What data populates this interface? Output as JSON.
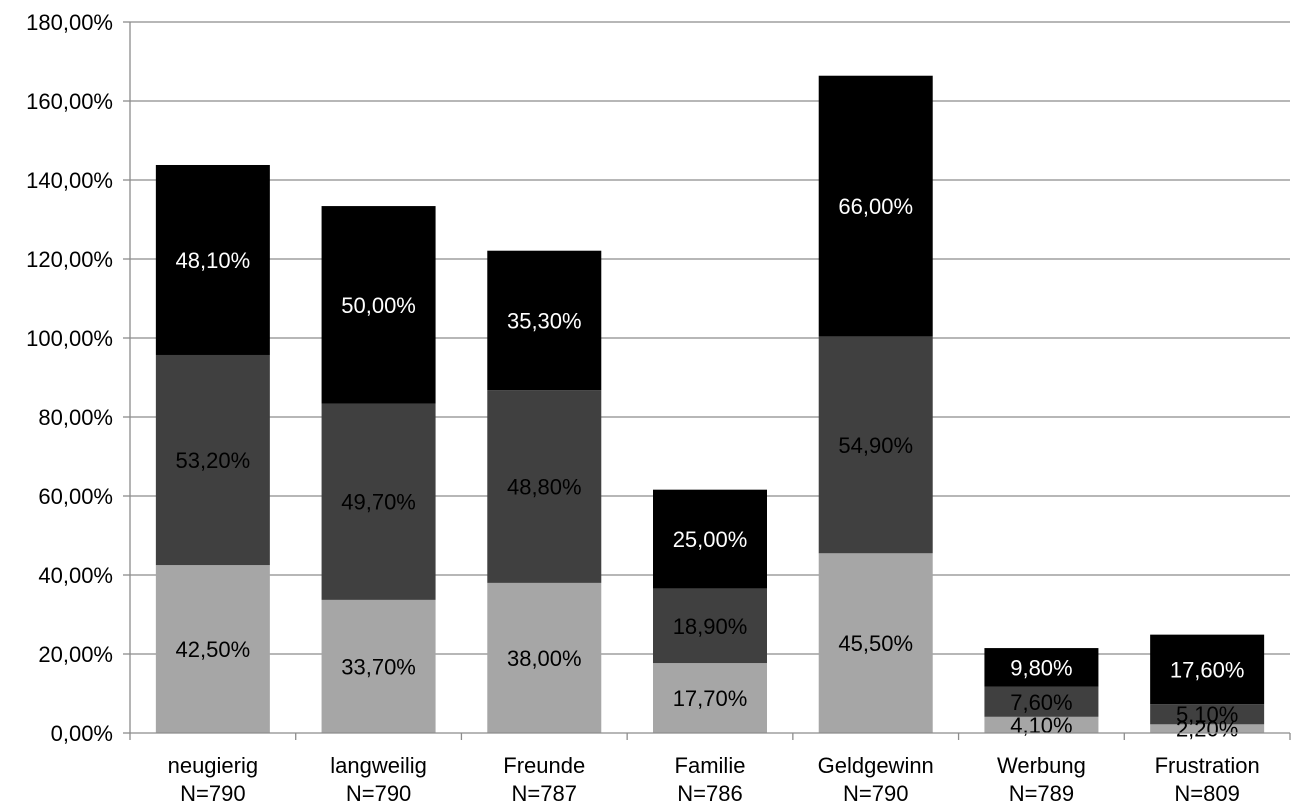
{
  "chart_data": {
    "type": "bar",
    "stacked": true,
    "title": "",
    "xlabel": "",
    "ylabel": "",
    "ylim": [
      0,
      180
    ],
    "ytick_step": 20,
    "ytick_labels": [
      "0,00%",
      "20,00%",
      "40,00%",
      "60,00%",
      "80,00%",
      "100,00%",
      "120,00%",
      "140,00%",
      "160,00%",
      "180,00%"
    ],
    "grid": true,
    "legend": "none",
    "categories": [
      "neugierig",
      "langweilig",
      "Freunde",
      "Familie",
      "Geldgewinn",
      "Werbung",
      "Frustration"
    ],
    "category_n": [
      "N=790",
      "N=790",
      "N=787",
      "N=786",
      "N=790",
      "N=789",
      "N=809"
    ],
    "series": [
      {
        "color": "#a6a6a6",
        "label_color": "#000000",
        "values": [
          42.5,
          33.7,
          38.0,
          17.7,
          45.5,
          4.1,
          2.2
        ],
        "labels": [
          "42,50%",
          "33,70%",
          "38,00%",
          "17,70%",
          "45,50%",
          "4,10%",
          "2,20%"
        ]
      },
      {
        "color": "#404040",
        "label_color": "#000000",
        "values": [
          53.2,
          49.7,
          48.8,
          18.9,
          54.9,
          7.6,
          5.1
        ],
        "labels": [
          "53,20%",
          "49,70%",
          "48,80%",
          "18,90%",
          "54,90%",
          "7,60%",
          "5,10%"
        ]
      },
      {
        "color": "#000000",
        "label_color": "#ffffff",
        "values": [
          48.1,
          50.0,
          35.3,
          25.0,
          66.0,
          9.8,
          17.6
        ],
        "labels": [
          "48,10%",
          "50,00%",
          "35,30%",
          "25,00%",
          "66,00%",
          "9,80%",
          "17,60%"
        ]
      }
    ]
  }
}
